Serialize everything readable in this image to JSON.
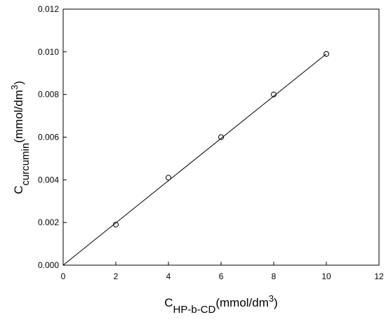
{
  "chart_data": {
    "type": "scatter",
    "xlim": [
      0,
      12
    ],
    "xticks": [
      0,
      2,
      4,
      6,
      8,
      10,
      12
    ],
    "ylim": [
      0,
      0.012
    ],
    "yticks": [
      {
        "value": 0,
        "label": "0.000"
      },
      {
        "value": 0.002,
        "label": "0.002"
      },
      {
        "value": 0.004,
        "label": "0.004"
      },
      {
        "value": 0.006,
        "label": "0.006"
      },
      {
        "value": 0.008,
        "label": "0.008"
      },
      {
        "value": 0.01,
        "label": "0.010"
      },
      {
        "value": 0.012,
        "label": "0.012"
      }
    ],
    "xlabel": [
      {
        "text": "C"
      },
      {
        "text": "HP-b-CD",
        "shift": "sub"
      },
      {
        "text": "(mmol/dm"
      },
      {
        "text": "3",
        "shift": "super"
      },
      {
        "text": ")"
      }
    ],
    "ylabel": [
      {
        "text": "C"
      },
      {
        "text": "curcumin",
        "shift": "sub"
      },
      {
        "text": "(mmol/dm"
      },
      {
        "text": "3",
        "shift": "super"
      },
      {
        "text": ")"
      }
    ],
    "series": [
      {
        "x": [
          2,
          4,
          6,
          8,
          10
        ],
        "values": [
          0.0019,
          0.0041,
          0.006,
          0.008,
          0.0099
        ],
        "marker": "open-circle",
        "color": "#000000"
      },
      {
        "x": [
          0,
          10
        ],
        "values": [
          0,
          0.0099
        ],
        "marker": "line",
        "color": "#000000"
      }
    ]
  }
}
